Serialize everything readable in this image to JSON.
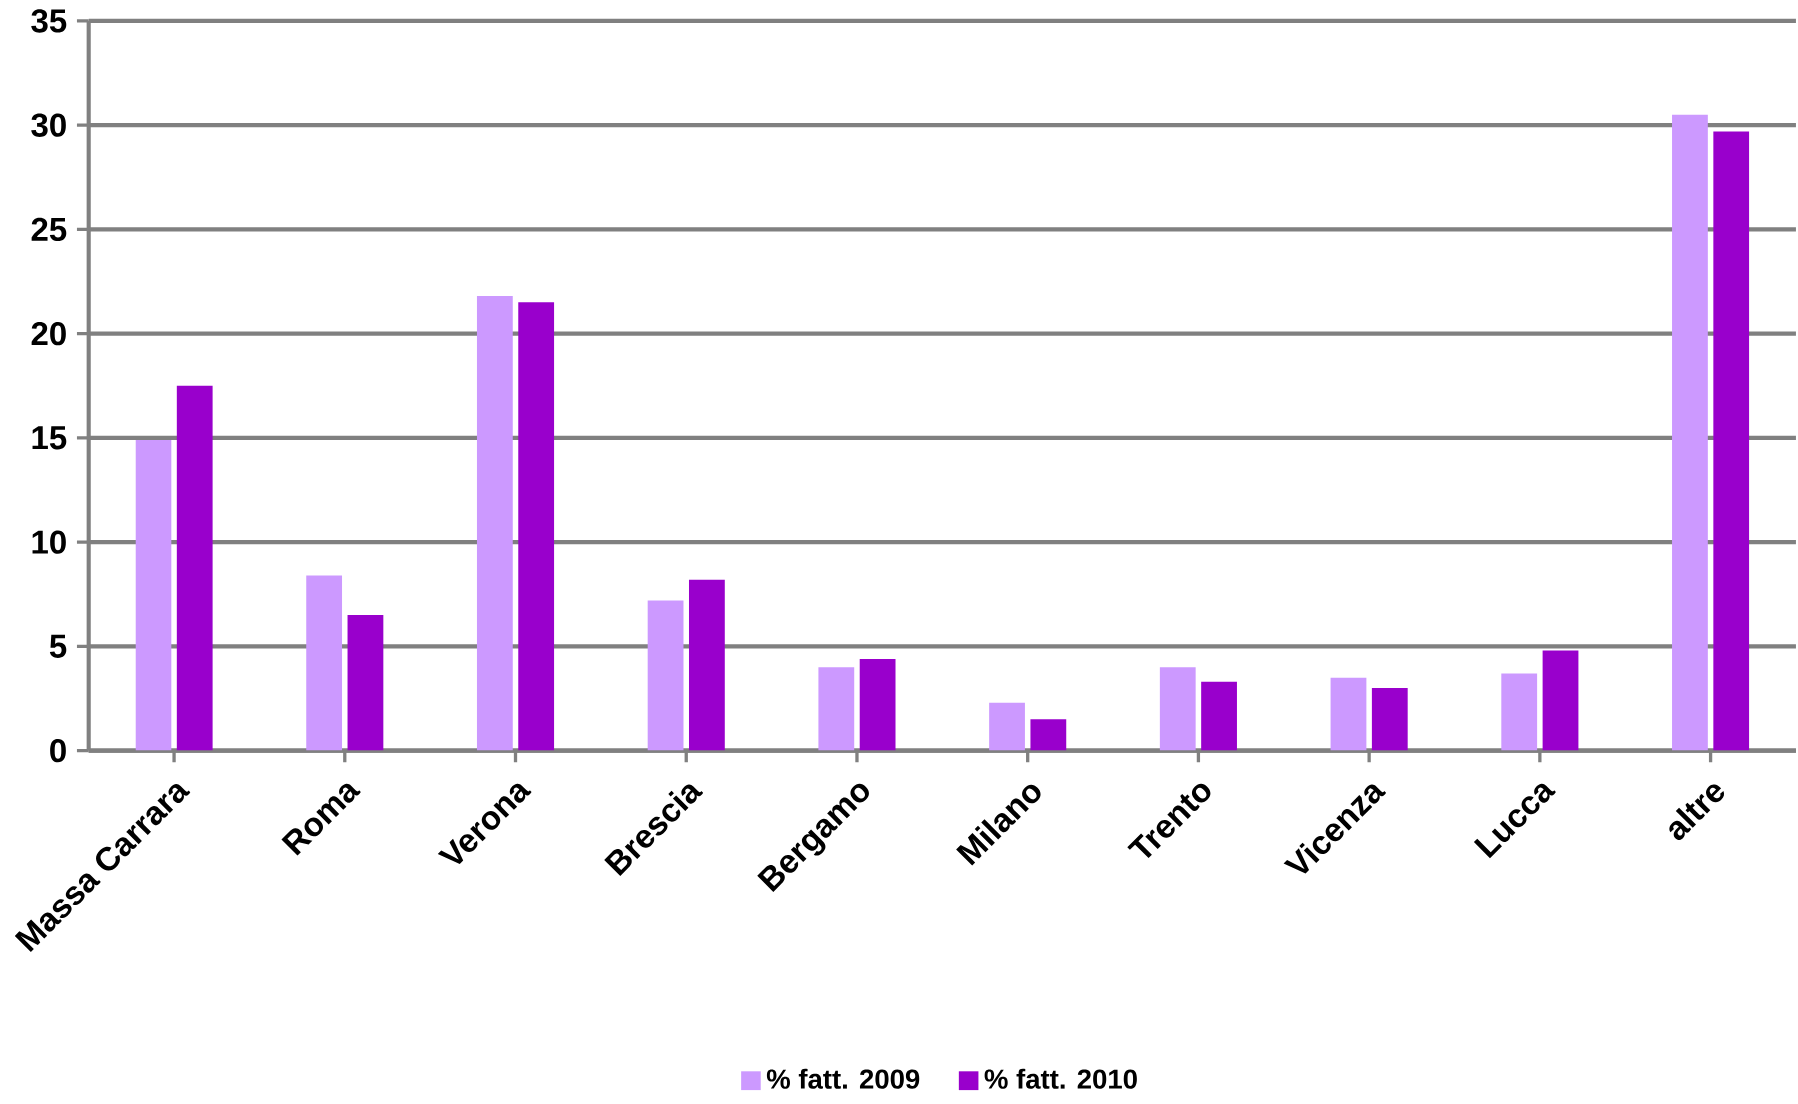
{
  "chart_data": {
    "type": "bar",
    "categories": [
      "Massa Carrara",
      "Roma",
      "Verona",
      "Brescia",
      "Bergamo",
      "Milano",
      "Trento",
      "Vicenza",
      "Lucca",
      "altre"
    ],
    "series": [
      {
        "name": "% fatt. 2009",
        "color": "#cc99ff",
        "values": [
          14.9,
          8.4,
          21.8,
          7.2,
          4.0,
          2.3,
          4.0,
          3.5,
          3.7,
          30.5
        ]
      },
      {
        "name": "% fatt. 2010",
        "color": "#9900cc",
        "values": [
          17.5,
          6.5,
          21.5,
          8.2,
          4.4,
          1.5,
          3.3,
          3.0,
          4.8,
          29.7
        ]
      }
    ],
    "ylim": [
      0,
      35
    ],
    "yticks": [
      0,
      5,
      10,
      15,
      20,
      25,
      30,
      35
    ],
    "grid": "y",
    "legend": "bottom"
  }
}
